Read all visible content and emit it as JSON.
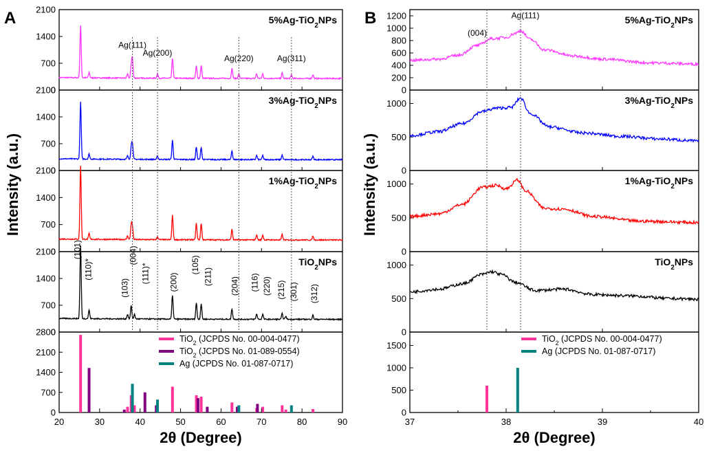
{
  "chart_data": [
    {
      "panel": "A",
      "type": "line",
      "xlabel": "2θ (Degree)",
      "ylabel": "Intensity (a.u.)",
      "xlim": [
        20,
        90
      ],
      "xticks": [
        20,
        30,
        40,
        50,
        60,
        70,
        80,
        90
      ],
      "ref_lines_x": [
        38.1,
        44.3,
        64.4,
        77.4
      ],
      "subplots": [
        {
          "label_pre": "5%Ag-TiO",
          "label_sub": "2",
          "label_post": "NPs",
          "color": "#ff33ff",
          "ylim": [
            0,
            2100
          ],
          "yticks": [
            0,
            700,
            1400,
            2100
          ],
          "baseline": 300,
          "peaks": [
            [
              25.3,
              1350
            ],
            [
              27.4,
              140
            ],
            [
              36.9,
              100
            ],
            [
              37.8,
              300
            ],
            [
              38.1,
              520
            ],
            [
              44.3,
              120
            ],
            [
              48.0,
              520
            ],
            [
              53.9,
              320
            ],
            [
              55.1,
              330
            ],
            [
              62.7,
              260
            ],
            [
              64.4,
              120
            ],
            [
              68.8,
              120
            ],
            [
              70.3,
              120
            ],
            [
              75.1,
              140
            ],
            [
              77.4,
              100
            ],
            [
              82.7,
              100
            ]
          ],
          "annotations": [
            {
              "text": "Ag(111)",
              "x": 38.1,
              "y": 1100
            },
            {
              "text": "Ag(200)",
              "x": 44.3,
              "y": 900
            },
            {
              "text": "Ag(220)",
              "x": 64.4,
              "y": 750
            },
            {
              "text": "Ag(311)",
              "x": 77.4,
              "y": 750
            }
          ]
        },
        {
          "label_pre": "3%Ag-TiO",
          "label_sub": "2",
          "label_post": "NPs",
          "color": "#0000ff",
          "ylim": [
            0,
            2100
          ],
          "yticks": [
            0,
            700,
            1400,
            2100
          ],
          "baseline": 280,
          "peaks": [
            [
              25.3,
              1480
            ],
            [
              27.4,
              130
            ],
            [
              36.9,
              90
            ],
            [
              37.8,
              300
            ],
            [
              38.1,
              420
            ],
            [
              44.3,
              90
            ],
            [
              48.0,
              500
            ],
            [
              53.9,
              330
            ],
            [
              55.1,
              320
            ],
            [
              62.7,
              230
            ],
            [
              68.8,
              110
            ],
            [
              70.3,
              110
            ],
            [
              75.1,
              120
            ],
            [
              82.7,
              90
            ]
          ],
          "annotations": []
        },
        {
          "label_pre": "1%Ag-TiO",
          "label_sub": "2",
          "label_post": "NPs",
          "color": "#ff0000",
          "ylim": [
            0,
            2100
          ],
          "yticks": [
            0,
            700,
            1400,
            2100
          ],
          "baseline": 300,
          "peaks": [
            [
              25.3,
              1900
            ],
            [
              27.4,
              150
            ],
            [
              36.9,
              100
            ],
            [
              37.8,
              370
            ],
            [
              38.1,
              330
            ],
            [
              44.3,
              80
            ],
            [
              48.0,
              630
            ],
            [
              53.9,
              420
            ],
            [
              55.1,
              420
            ],
            [
              62.7,
              270
            ],
            [
              68.8,
              130
            ],
            [
              70.3,
              130
            ],
            [
              75.1,
              140
            ],
            [
              82.7,
              100
            ]
          ],
          "annotations": []
        },
        {
          "label_pre": "TiO",
          "label_sub": "2",
          "label_post": "NPs",
          "color": "#000000",
          "ylim": [
            0,
            2100
          ],
          "yticks": [
            0,
            700,
            1400,
            2100
          ],
          "baseline": 330,
          "peaks": [
            [
              25.3,
              1900
            ],
            [
              27.4,
              230
            ],
            [
              36.9,
              120
            ],
            [
              37.8,
              360
            ],
            [
              38.6,
              120
            ],
            [
              48.0,
              630
            ],
            [
              53.9,
              420
            ],
            [
              55.1,
              400
            ],
            [
              62.7,
              270
            ],
            [
              68.8,
              140
            ],
            [
              70.3,
              130
            ],
            [
              75.1,
              150
            ],
            [
              76.0,
              80
            ],
            [
              82.7,
              110
            ]
          ],
          "annotations": [
            {
              "text": "(101)",
              "x": 24.5,
              "y": 1900,
              "rotate": true
            },
            {
              "text": "(110)*",
              "x": 27.2,
              "y": 1350,
              "rotate": true
            },
            {
              "text": "(103)",
              "x": 36.2,
              "y": 900,
              "rotate": true
            },
            {
              "text": "(004)",
              "x": 38.3,
              "y": 1750,
              "rotate": true
            },
            {
              "text": "(111)*",
              "x": 41.3,
              "y": 1250,
              "rotate": true
            },
            {
              "text": "(200)",
              "x": 48.3,
              "y": 1050,
              "rotate": true
            },
            {
              "text": "(105)",
              "x": 53.6,
              "y": 1500,
              "rotate": true
            },
            {
              "text": "(211)",
              "x": 56.8,
              "y": 1200,
              "rotate": true
            },
            {
              "text": "(204)",
              "x": 63.4,
              "y": 950,
              "rotate": true
            },
            {
              "text": "(116)",
              "x": 68.3,
              "y": 1050,
              "rotate": true
            },
            {
              "text": "(220)",
              "x": 71.3,
              "y": 950,
              "rotate": true
            },
            {
              "text": "(215)",
              "x": 74.9,
              "y": 850,
              "rotate": true
            },
            {
              "text": "(301)",
              "x": 77.9,
              "y": 800,
              "rotate": true
            },
            {
              "text": "(312)",
              "x": 83.0,
              "y": 750,
              "rotate": true
            }
          ]
        }
      ],
      "reference": {
        "ylim": [
          0,
          2800
        ],
        "yticks": [
          0,
          700,
          1400,
          2100,
          2800
        ],
        "sticks": [
          {
            "name": "TiO2 (JCPDS No. 00-004-0477)",
            "color": "#ff3399",
            "x": [
              25.3,
              36.9,
              37.8,
              38.6,
              48.0,
              53.9,
              55.1,
              62.7,
              68.8,
              70.3,
              75.1,
              76.0,
              82.7
            ],
            "y": [
              2700,
              200,
              600,
              250,
              900,
              600,
              550,
              350,
              150,
              200,
              250,
              100,
              120
            ]
          },
          {
            "name": "TiO2 (JCPDS No. 01-089-0554)",
            "color": "#800080",
            "x": [
              27.4,
              36.1,
              41.2,
              44.0,
              54.3,
              56.6,
              64.0,
              69.0
            ],
            "y": [
              1550,
              100,
              700,
              250,
              500,
              200,
              200,
              300
            ]
          },
          {
            "name": "Ag (JCPDS No. 01-087-0717)",
            "color": "#008080",
            "x": [
              38.1,
              44.3,
              64.4,
              77.4
            ],
            "y": [
              1000,
              450,
              250,
              250
            ]
          }
        ],
        "legend": [
          {
            "pre": "TiO",
            "sub": "2",
            "post": " (JCPDS No. 00-004-0477)",
            "color": "#ff3399"
          },
          {
            "pre": "TiO",
            "sub": "2",
            "post": " (JCPDS No. 01-089-0554)",
            "color": "#800080"
          },
          {
            "pre": "Ag",
            "sub": "",
            "post": "   (JCPDS No. 01-087-0717)",
            "color": "#008080"
          }
        ]
      }
    },
    {
      "panel": "B",
      "type": "line",
      "xlabel": "2θ (Degree)",
      "ylabel": "Intensity (a.u.)",
      "xlim": [
        37,
        40
      ],
      "xticks": [
        37,
        38,
        39,
        40
      ],
      "ref_lines_x": [
        37.8,
        38.15
      ],
      "subplots": [
        {
          "label_pre": "5%Ag-TiO",
          "label_sub": "2",
          "label_post": "NPs",
          "color": "#ff33ff",
          "ylim": [
            0,
            1300
          ],
          "yticks": [
            0,
            200,
            400,
            600,
            800,
            1000,
            1200
          ],
          "points": [
            [
              37.0,
              480
            ],
            [
              37.3,
              500
            ],
            [
              37.5,
              560
            ],
            [
              37.7,
              720
            ],
            [
              37.85,
              830
            ],
            [
              38.0,
              850
            ],
            [
              38.1,
              920
            ],
            [
              38.15,
              960
            ],
            [
              38.25,
              820
            ],
            [
              38.4,
              650
            ],
            [
              38.7,
              550
            ],
            [
              39.0,
              500
            ],
            [
              39.5,
              440
            ],
            [
              40.0,
              420
            ]
          ],
          "annotations": [
            {
              "text": "(004)",
              "x": 37.7,
              "y": 880
            },
            {
              "text": "Ag(111)",
              "x": 38.2,
              "y": 1160
            }
          ]
        },
        {
          "label_pre": "3%Ag-TiO",
          "label_sub": "2",
          "label_post": "NPs",
          "color": "#0000ff",
          "ylim": [
            0,
            1200
          ],
          "yticks": [
            0,
            500,
            1000
          ],
          "points": [
            [
              37.0,
              520
            ],
            [
              37.3,
              580
            ],
            [
              37.55,
              700
            ],
            [
              37.75,
              880
            ],
            [
              37.9,
              930
            ],
            [
              38.05,
              940
            ],
            [
              38.15,
              1080
            ],
            [
              38.25,
              850
            ],
            [
              38.45,
              650
            ],
            [
              38.8,
              560
            ],
            [
              39.2,
              510
            ],
            [
              39.6,
              470
            ],
            [
              40.0,
              440
            ]
          ],
          "annotations": []
        },
        {
          "label_pre": "1%Ag-TiO",
          "label_sub": "2",
          "label_post": "NPs",
          "color": "#ff0000",
          "ylim": [
            0,
            1200
          ],
          "yticks": [
            0,
            500,
            1000
          ],
          "points": [
            [
              37.0,
              520
            ],
            [
              37.3,
              560
            ],
            [
              37.55,
              700
            ],
            [
              37.75,
              950
            ],
            [
              37.9,
              980
            ],
            [
              38.0,
              930
            ],
            [
              38.12,
              1060
            ],
            [
              38.2,
              900
            ],
            [
              38.4,
              640
            ],
            [
              38.6,
              630
            ],
            [
              38.9,
              520
            ],
            [
              39.4,
              450
            ],
            [
              40.0,
              430
            ]
          ],
          "annotations": []
        },
        {
          "label_pre": "TiO",
          "label_sub": "2",
          "label_post": "NPs",
          "color": "#000000",
          "ylim": [
            0,
            1200
          ],
          "yticks": [
            0,
            500,
            1000
          ],
          "points": [
            [
              37.0,
              600
            ],
            [
              37.3,
              640
            ],
            [
              37.55,
              720
            ],
            [
              37.75,
              860
            ],
            [
              37.85,
              900
            ],
            [
              37.95,
              860
            ],
            [
              38.1,
              740
            ],
            [
              38.3,
              620
            ],
            [
              38.6,
              640
            ],
            [
              38.9,
              560
            ],
            [
              39.3,
              540
            ],
            [
              39.7,
              500
            ],
            [
              40.0,
              490
            ]
          ],
          "annotations": []
        }
      ],
      "reference": {
        "ylim": [
          0,
          1800
        ],
        "yticks": [
          0,
          500,
          1000,
          1500
        ],
        "sticks": [
          {
            "name": "TiO2 (JCPDS No. 00-004-0477)",
            "color": "#ff3399",
            "x": [
              37.8
            ],
            "y": [
              600
            ]
          },
          {
            "name": "Ag (JCPDS No. 01-087-0717)",
            "color": "#008080",
            "x": [
              38.12
            ],
            "y": [
              1000
            ]
          }
        ],
        "legend": [
          {
            "pre": "TiO",
            "sub": "2",
            "post": " (JCPDS No. 00-004-0477)",
            "color": "#ff3399"
          },
          {
            "pre": "Ag",
            "sub": "",
            "post": "   (JCPDS No. 01-087-0717)",
            "color": "#008080"
          }
        ]
      }
    }
  ]
}
